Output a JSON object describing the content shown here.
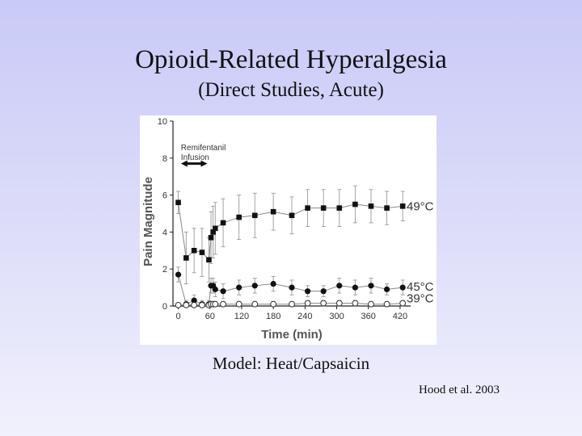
{
  "slide": {
    "title": "Opioid-Related Hyperalgesia",
    "subtitle": "(Direct Studies, Acute)",
    "caption": "Model: Heat/Capsaicin",
    "citation": "Hood et al. 2003"
  },
  "chart_data": {
    "type": "scatter",
    "xlabel": "Time (min)",
    "ylabel": "Pain Magnitude",
    "xlim": [
      -10,
      440
    ],
    "ylim": [
      0,
      10
    ],
    "x_ticks": [
      0,
      60,
      120,
      180,
      240,
      300,
      360,
      420
    ],
    "y_ticks": [
      0,
      2,
      4,
      6,
      8,
      10
    ],
    "annotation": {
      "lines": [
        "Remifentanil",
        "Infusion"
      ],
      "arrow_x": [
        5,
        55
      ],
      "arrow_y": 7.7
    },
    "series": [
      {
        "name": "49°C",
        "marker": "square-filled",
        "x": [
          0,
          15,
          30,
          45,
          58,
          62,
          66,
          70,
          85,
          115,
          145,
          180,
          215,
          245,
          275,
          305,
          335,
          365,
          395,
          425
        ],
        "y": [
          5.6,
          2.6,
          3.0,
          2.9,
          2.5,
          3.7,
          4.0,
          4.2,
          4.5,
          4.8,
          4.9,
          5.1,
          4.9,
          5.3,
          5.3,
          5.3,
          5.5,
          5.4,
          5.3,
          5.4
        ],
        "err": [
          0.6,
          1.4,
          1.2,
          1.3,
          1.2,
          1.4,
          1.4,
          1.4,
          1.3,
          1.2,
          1.2,
          1.0,
          1.0,
          1.0,
          1.0,
          1.0,
          1.0,
          0.9,
          0.9,
          0.8
        ]
      },
      {
        "name": "45°C",
        "marker": "circle-filled",
        "x": [
          0,
          15,
          30,
          45,
          58,
          62,
          66,
          70,
          85,
          115,
          145,
          180,
          215,
          245,
          275,
          305,
          335,
          365,
          395,
          425
        ],
        "y": [
          1.7,
          0.1,
          0.3,
          0.1,
          0.1,
          1.1,
          1.1,
          0.9,
          0.8,
          1.0,
          1.1,
          1.2,
          1.0,
          0.8,
          0.8,
          1.1,
          1.0,
          1.1,
          0.9,
          1.0
        ],
        "err": [
          0.4,
          0.2,
          0.3,
          0.2,
          0.2,
          0.4,
          0.4,
          0.4,
          0.4,
          0.4,
          0.4,
          0.4,
          0.4,
          0.3,
          0.3,
          0.4,
          0.4,
          0.4,
          0.3,
          0.4
        ]
      },
      {
        "name": "39°C",
        "marker": "circle-open",
        "x": [
          0,
          15,
          30,
          45,
          58,
          62,
          66,
          70,
          85,
          115,
          145,
          180,
          215,
          245,
          275,
          305,
          335,
          365,
          395,
          425
        ],
        "y": [
          0.05,
          0.05,
          0.05,
          0.05,
          0.05,
          0.1,
          0.1,
          0.1,
          0.1,
          0.1,
          0.1,
          0.1,
          0.1,
          0.15,
          0.15,
          0.15,
          0.15,
          0.1,
          0.1,
          0.15
        ],
        "err": [
          0.1,
          0.1,
          0.1,
          0.1,
          0.1,
          0.15,
          0.15,
          0.15,
          0.15,
          0.15,
          0.15,
          0.15,
          0.15,
          0.15,
          0.15,
          0.15,
          0.15,
          0.15,
          0.15,
          0.15
        ]
      }
    ],
    "legend": "right"
  }
}
